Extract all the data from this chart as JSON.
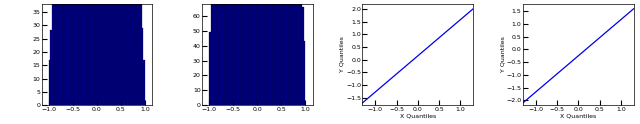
{
  "hist1_ylim": [
    0,
    38
  ],
  "hist1_xlim": [
    -1.15,
    1.15
  ],
  "hist1_yticks": [
    0,
    5,
    10,
    15,
    20,
    25,
    30,
    35
  ],
  "hist1_xticks": [
    -1,
    -0.5,
    0,
    0.5,
    1
  ],
  "hist2_ylim": [
    0,
    68
  ],
  "hist2_xlim": [
    -1.15,
    1.15
  ],
  "hist2_yticks": [
    0,
    10,
    20,
    30,
    40,
    50,
    60
  ],
  "hist2_xticks": [
    -1,
    -0.5,
    0,
    0.5,
    1
  ],
  "qq1_xlim": [
    -1.3,
    1.3
  ],
  "qq1_ylim": [
    -1.8,
    2.2
  ],
  "qq1_yticks": [
    -1.5,
    -1,
    -0.5,
    0,
    0.5,
    1,
    1.5,
    2
  ],
  "qq1_xticks": [
    -1,
    -0.5,
    0,
    0.5,
    1
  ],
  "qq1_xlabel": "X Quantiles",
  "qq1_ylabel": "Y Quantiles",
  "qq2_xlim": [
    -1.3,
    1.3
  ],
  "qq2_ylim": [
    -2.2,
    1.8
  ],
  "qq2_yticks": [
    -2,
    -1.5,
    -1,
    -0.5,
    0,
    0.5,
    1,
    1.5
  ],
  "qq2_xticks": [
    -1,
    -0.5,
    0,
    0.5,
    1
  ],
  "qq2_xlabel": "X Quantiles",
  "qq2_ylabel": "Y Quantiles",
  "bar_color": "#00008B",
  "line_color": "#0000EE",
  "bg_color": "#FFFFFF",
  "n_bins": 60,
  "n_samples1": 5000,
  "n_samples2": 10000,
  "figsize": [
    6.4,
    1.24
  ],
  "dpi": 100
}
